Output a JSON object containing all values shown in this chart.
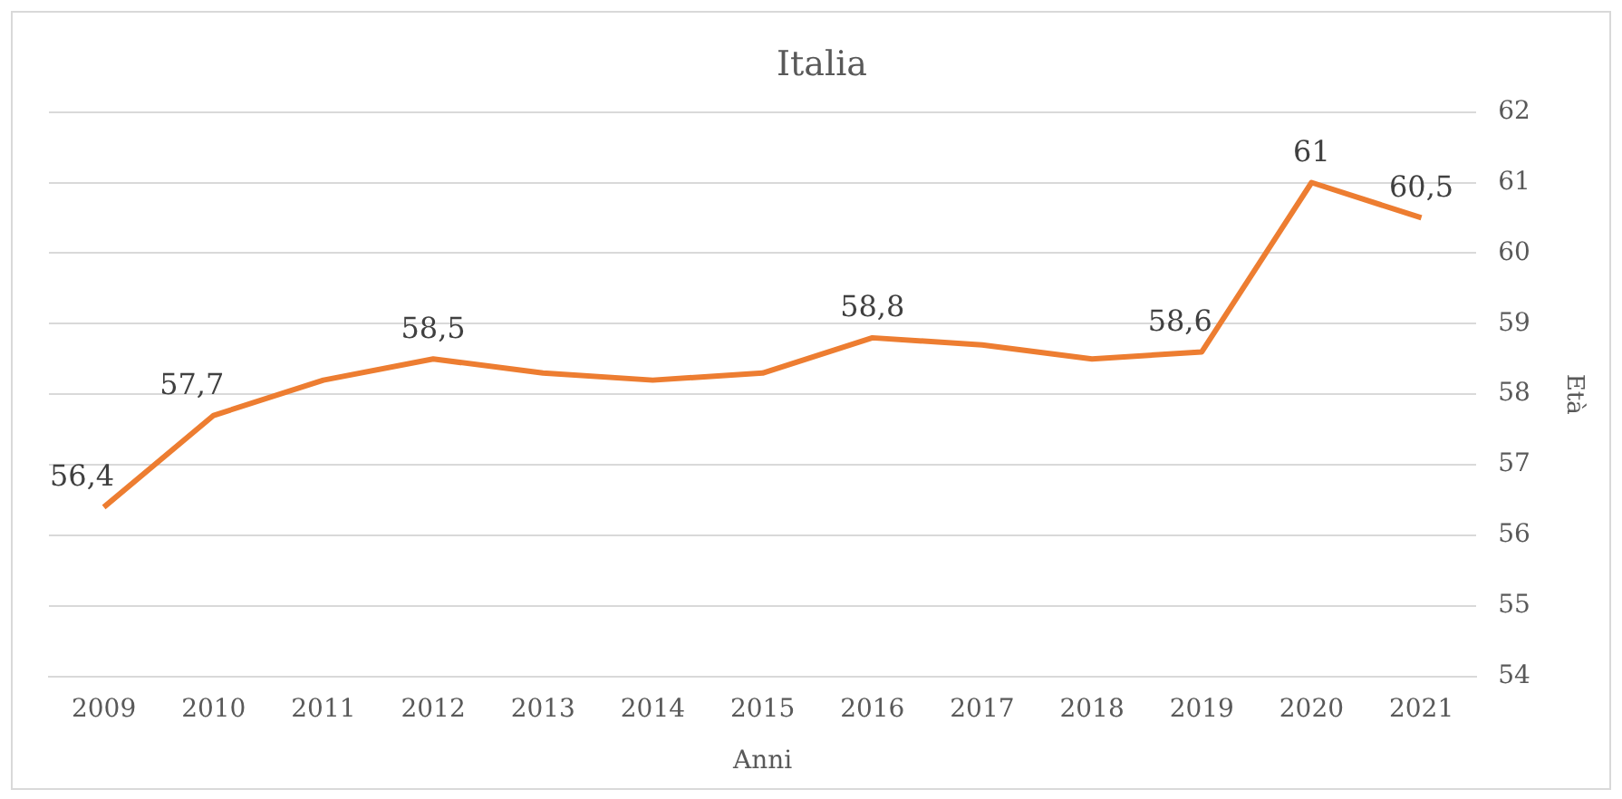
{
  "chart_data": {
    "type": "line",
    "title": "Italia",
    "xlabel": "Anni",
    "ylabel": "Età",
    "categories": [
      "2009",
      "2010",
      "2011",
      "2012",
      "2013",
      "2014",
      "2015",
      "2016",
      "2017",
      "2018",
      "2019",
      "2020",
      "2021"
    ],
    "series": [
      {
        "color": "#ed7d31",
        "values": [
          56.4,
          57.7,
          58.2,
          58.5,
          58.3,
          58.2,
          58.3,
          58.8,
          58.7,
          58.5,
          58.6,
          61,
          60.5
        ],
        "value_labels": [
          "56,4",
          "57,7",
          null,
          "58,5",
          null,
          null,
          null,
          "58,8",
          null,
          null,
          "58,6",
          "61",
          "60,5"
        ]
      }
    ],
    "ylim": [
      54,
      62
    ],
    "yticks": [
      54,
      55,
      56,
      57,
      58,
      59,
      60,
      61,
      62
    ],
    "grid": "y",
    "legend": false,
    "marker": "none",
    "line_style": "solid"
  }
}
